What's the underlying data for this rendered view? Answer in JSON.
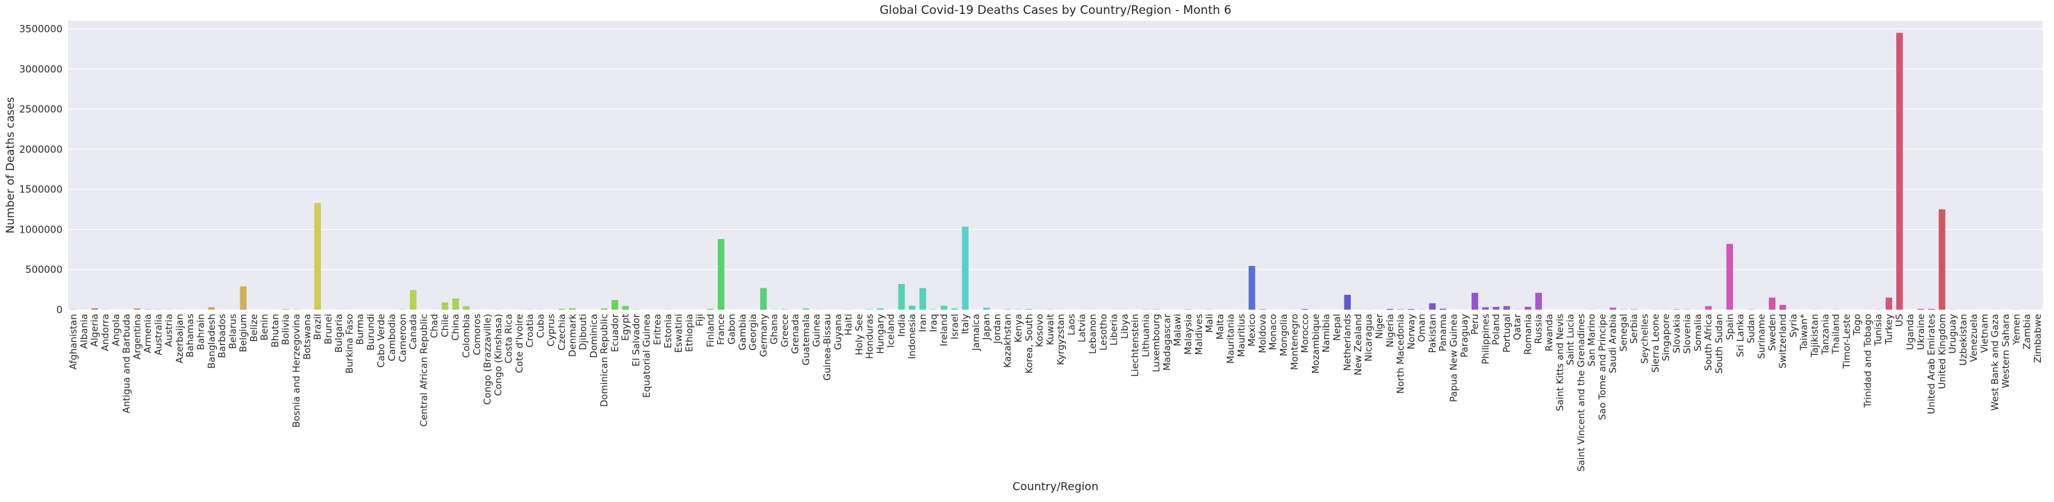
{
  "chart_data": {
    "type": "bar",
    "title": "Global Covid-19 Deaths Cases by Country/Region - Month 6",
    "xlabel": "Country/Region",
    "ylabel": "Number of Deaths cases",
    "ylim": [
      0,
      3600000
    ],
    "yticks": [
      0,
      500000,
      1000000,
      1500000,
      2000000,
      2500000,
      3000000,
      3500000
    ],
    "grid": true,
    "style": {
      "plot_bg": "#eaeaf2",
      "grid": "#ffffff"
    },
    "categories": [
      "Afghanistan",
      "Albania",
      "Algeria",
      "Andorra",
      "Angola",
      "Antigua and Barbuda",
      "Argentina",
      "Armenia",
      "Australia",
      "Austria",
      "Azerbaijan",
      "Bahamas",
      "Bahrain",
      "Bangladesh",
      "Barbados",
      "Belarus",
      "Belgium",
      "Belize",
      "Benin",
      "Bhutan",
      "Bolivia",
      "Bosnia and Herzegovina",
      "Botswana",
      "Brazil",
      "Brunei",
      "Bulgaria",
      "Burkina Faso",
      "Burma",
      "Burundi",
      "Cabo Verde",
      "Cambodia",
      "Cameroon",
      "Canada",
      "Central African Republic",
      "Chad",
      "Chile",
      "China",
      "Colombia",
      "Comoros",
      "Congo (Brazzaville)",
      "Congo (Kinshasa)",
      "Costa Rica",
      "Cote d'Ivoire",
      "Croatia",
      "Cuba",
      "Cyprus",
      "Czechia",
      "Denmark",
      "Djibouti",
      "Dominica",
      "Dominican Republic",
      "Ecuador",
      "Egypt",
      "El Salvador",
      "Equatorial Guinea",
      "Eritrea",
      "Estonia",
      "Eswatini",
      "Ethiopia",
      "Fiji",
      "Finland",
      "France",
      "Gabon",
      "Gambia",
      "Georgia",
      "Germany",
      "Ghana",
      "Greece",
      "Grenada",
      "Guatemala",
      "Guinea",
      "Guinea-Bissau",
      "Guyana",
      "Haiti",
      "Holy See",
      "Honduras",
      "Hungary",
      "Iceland",
      "India",
      "Indonesia",
      "Iran",
      "Iraq",
      "Ireland",
      "Israel",
      "Italy",
      "Jamaica",
      "Japan",
      "Jordan",
      "Kazakhstan",
      "Kenya",
      "Korea, South",
      "Kosovo",
      "Kuwait",
      "Kyrgyzstan",
      "Laos",
      "Latvia",
      "Lebanon",
      "Lesotho",
      "Liberia",
      "Libya",
      "Liechtenstein",
      "Lithuania",
      "Luxembourg",
      "Madagascar",
      "Malawi",
      "Malaysia",
      "Maldives",
      "Mali",
      "Malta",
      "Mauritania",
      "Mauritius",
      "Mexico",
      "Moldova",
      "Monaco",
      "Mongolia",
      "Montenegro",
      "Morocco",
      "Mozambique",
      "Namibia",
      "Nepal",
      "Netherlands",
      "New Zealand",
      "Nicaragua",
      "Niger",
      "Nigeria",
      "North Macedonia",
      "Norway",
      "Oman",
      "Pakistan",
      "Panama",
      "Papua New Guinea",
      "Paraguay",
      "Peru",
      "Philippines",
      "Poland",
      "Portugal",
      "Qatar",
      "Romania",
      "Russia",
      "Rwanda",
      "Saint Kitts and Nevis",
      "Saint Lucia",
      "Saint Vincent and the Grenadines",
      "San Marino",
      "Sao Tome and Principe",
      "Saudi Arabia",
      "Senegal",
      "Serbia",
      "Seychelles",
      "Sierra Leone",
      "Singapore",
      "Slovakia",
      "Slovenia",
      "Somalia",
      "South Africa",
      "South Sudan",
      "Spain",
      "Sri Lanka",
      "Sudan",
      "Suriname",
      "Sweden",
      "Switzerland",
      "Syria",
      "Taiwan*",
      "Tajikistan",
      "Tanzania",
      "Thailand",
      "Timor-Leste",
      "Togo",
      "Trinidad and Tobago",
      "Tunisia",
      "Turkey",
      "US",
      "Uganda",
      "Ukraine",
      "United Arab Emirates",
      "United Kingdom",
      "Uruguay",
      "Uzbekistan",
      "Venezuela",
      "Vietnam",
      "West Bank and Gaza",
      "Western Sahara",
      "Yemen",
      "Zambia",
      "Zimbabwe"
    ],
    "values": [
      3000,
      1000,
      16000,
      1500,
      200,
      100,
      15000,
      3500,
      3000,
      2000,
      1500,
      300,
      300,
      30000,
      200,
      1000,
      290000,
      100,
      100,
      0,
      8000,
      4000,
      0,
      1330000,
      0,
      2000,
      1500,
      100,
      100,
      100,
      0,
      4000,
      245000,
      100,
      1500,
      90000,
      140000,
      45000,
      100,
      100,
      2000,
      300,
      1000,
      3000,
      2500,
      500,
      10000,
      17000,
      500,
      0,
      15000,
      120000,
      45000,
      3000,
      200,
      0,
      2000,
      100,
      500,
      0,
      10000,
      880000,
      500,
      100,
      400,
      270000,
      2500,
      5000,
      0,
      15000,
      1500,
      500,
      500,
      2000,
      0,
      5000,
      16000,
      300,
      320000,
      50000,
      270000,
      5000,
      50000,
      15000,
      1035000,
      300,
      25000,
      300,
      5000,
      3000,
      8000,
      1000,
      3000,
      1000,
      0,
      1000,
      1000,
      100,
      1000,
      1000,
      0,
      2500,
      3000,
      300,
      300,
      3500,
      0,
      2000,
      200,
      500,
      300,
      545000,
      5000,
      100,
      0,
      500,
      7000,
      300,
      100,
      500,
      185000,
      700,
      1000,
      500,
      10000,
      4000,
      7500,
      2000,
      80000,
      12000,
      0,
      500,
      210000,
      30000,
      35000,
      45000,
      2000,
      35000,
      210000,
      0,
      0,
      0,
      0,
      1200,
      0,
      25000,
      3000,
      5000,
      0,
      1500,
      1000,
      5000,
      3000,
      1500,
      45000,
      500,
      820000,
      300,
      3000,
      500,
      150000,
      60000,
      500,
      200,
      1500,
      0,
      2000,
      0,
      100,
      500,
      2000,
      150000,
      3450000,
      0,
      10000,
      10000,
      1250000,
      2000,
      500,
      500,
      0,
      1000,
      0,
      1500,
      500,
      500
    ]
  }
}
